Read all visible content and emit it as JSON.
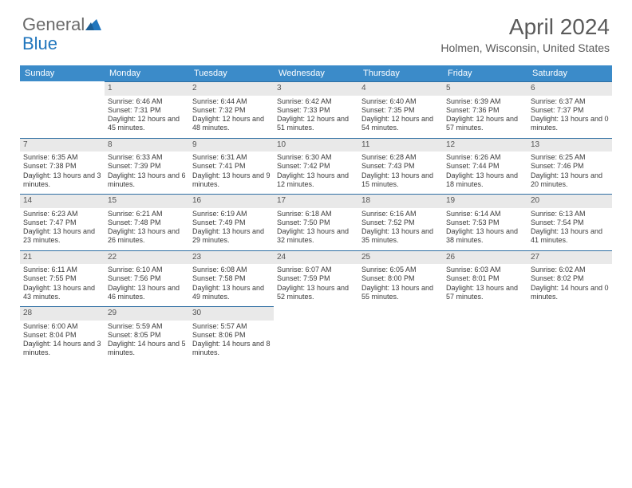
{
  "brand": {
    "general": "General",
    "blue": "Blue"
  },
  "title": "April 2024",
  "location": "Holmen, Wisconsin, United States",
  "colors": {
    "header_bg": "#3b8bc9",
    "header_text": "#ffffff",
    "daynum_bg": "#e9e9e9",
    "daynum_border": "#2f6fa3",
    "text": "#3a3a3a",
    "title_text": "#5a5a5a",
    "logo_blue": "#2176bd"
  },
  "weekdays": [
    "Sunday",
    "Monday",
    "Tuesday",
    "Wednesday",
    "Thursday",
    "Friday",
    "Saturday"
  ],
  "grid": [
    [
      null,
      {
        "n": "1",
        "sr": "6:46 AM",
        "ss": "7:31 PM",
        "dl": "12 hours and 45 minutes."
      },
      {
        "n": "2",
        "sr": "6:44 AM",
        "ss": "7:32 PM",
        "dl": "12 hours and 48 minutes."
      },
      {
        "n": "3",
        "sr": "6:42 AM",
        "ss": "7:33 PM",
        "dl": "12 hours and 51 minutes."
      },
      {
        "n": "4",
        "sr": "6:40 AM",
        "ss": "7:35 PM",
        "dl": "12 hours and 54 minutes."
      },
      {
        "n": "5",
        "sr": "6:39 AM",
        "ss": "7:36 PM",
        "dl": "12 hours and 57 minutes."
      },
      {
        "n": "6",
        "sr": "6:37 AM",
        "ss": "7:37 PM",
        "dl": "13 hours and 0 minutes."
      }
    ],
    [
      {
        "n": "7",
        "sr": "6:35 AM",
        "ss": "7:38 PM",
        "dl": "13 hours and 3 minutes."
      },
      {
        "n": "8",
        "sr": "6:33 AM",
        "ss": "7:39 PM",
        "dl": "13 hours and 6 minutes."
      },
      {
        "n": "9",
        "sr": "6:31 AM",
        "ss": "7:41 PM",
        "dl": "13 hours and 9 minutes."
      },
      {
        "n": "10",
        "sr": "6:30 AM",
        "ss": "7:42 PM",
        "dl": "13 hours and 12 minutes."
      },
      {
        "n": "11",
        "sr": "6:28 AM",
        "ss": "7:43 PM",
        "dl": "13 hours and 15 minutes."
      },
      {
        "n": "12",
        "sr": "6:26 AM",
        "ss": "7:44 PM",
        "dl": "13 hours and 18 minutes."
      },
      {
        "n": "13",
        "sr": "6:25 AM",
        "ss": "7:46 PM",
        "dl": "13 hours and 20 minutes."
      }
    ],
    [
      {
        "n": "14",
        "sr": "6:23 AM",
        "ss": "7:47 PM",
        "dl": "13 hours and 23 minutes."
      },
      {
        "n": "15",
        "sr": "6:21 AM",
        "ss": "7:48 PM",
        "dl": "13 hours and 26 minutes."
      },
      {
        "n": "16",
        "sr": "6:19 AM",
        "ss": "7:49 PM",
        "dl": "13 hours and 29 minutes."
      },
      {
        "n": "17",
        "sr": "6:18 AM",
        "ss": "7:50 PM",
        "dl": "13 hours and 32 minutes."
      },
      {
        "n": "18",
        "sr": "6:16 AM",
        "ss": "7:52 PM",
        "dl": "13 hours and 35 minutes."
      },
      {
        "n": "19",
        "sr": "6:14 AM",
        "ss": "7:53 PM",
        "dl": "13 hours and 38 minutes."
      },
      {
        "n": "20",
        "sr": "6:13 AM",
        "ss": "7:54 PM",
        "dl": "13 hours and 41 minutes."
      }
    ],
    [
      {
        "n": "21",
        "sr": "6:11 AM",
        "ss": "7:55 PM",
        "dl": "13 hours and 43 minutes."
      },
      {
        "n": "22",
        "sr": "6:10 AM",
        "ss": "7:56 PM",
        "dl": "13 hours and 46 minutes."
      },
      {
        "n": "23",
        "sr": "6:08 AM",
        "ss": "7:58 PM",
        "dl": "13 hours and 49 minutes."
      },
      {
        "n": "24",
        "sr": "6:07 AM",
        "ss": "7:59 PM",
        "dl": "13 hours and 52 minutes."
      },
      {
        "n": "25",
        "sr": "6:05 AM",
        "ss": "8:00 PM",
        "dl": "13 hours and 55 minutes."
      },
      {
        "n": "26",
        "sr": "6:03 AM",
        "ss": "8:01 PM",
        "dl": "13 hours and 57 minutes."
      },
      {
        "n": "27",
        "sr": "6:02 AM",
        "ss": "8:02 PM",
        "dl": "14 hours and 0 minutes."
      }
    ],
    [
      {
        "n": "28",
        "sr": "6:00 AM",
        "ss": "8:04 PM",
        "dl": "14 hours and 3 minutes."
      },
      {
        "n": "29",
        "sr": "5:59 AM",
        "ss": "8:05 PM",
        "dl": "14 hours and 5 minutes."
      },
      {
        "n": "30",
        "sr": "5:57 AM",
        "ss": "8:06 PM",
        "dl": "14 hours and 8 minutes."
      },
      null,
      null,
      null,
      null
    ]
  ],
  "labels": {
    "sunrise": "Sunrise:",
    "sunset": "Sunset:",
    "daylight": "Daylight:"
  }
}
